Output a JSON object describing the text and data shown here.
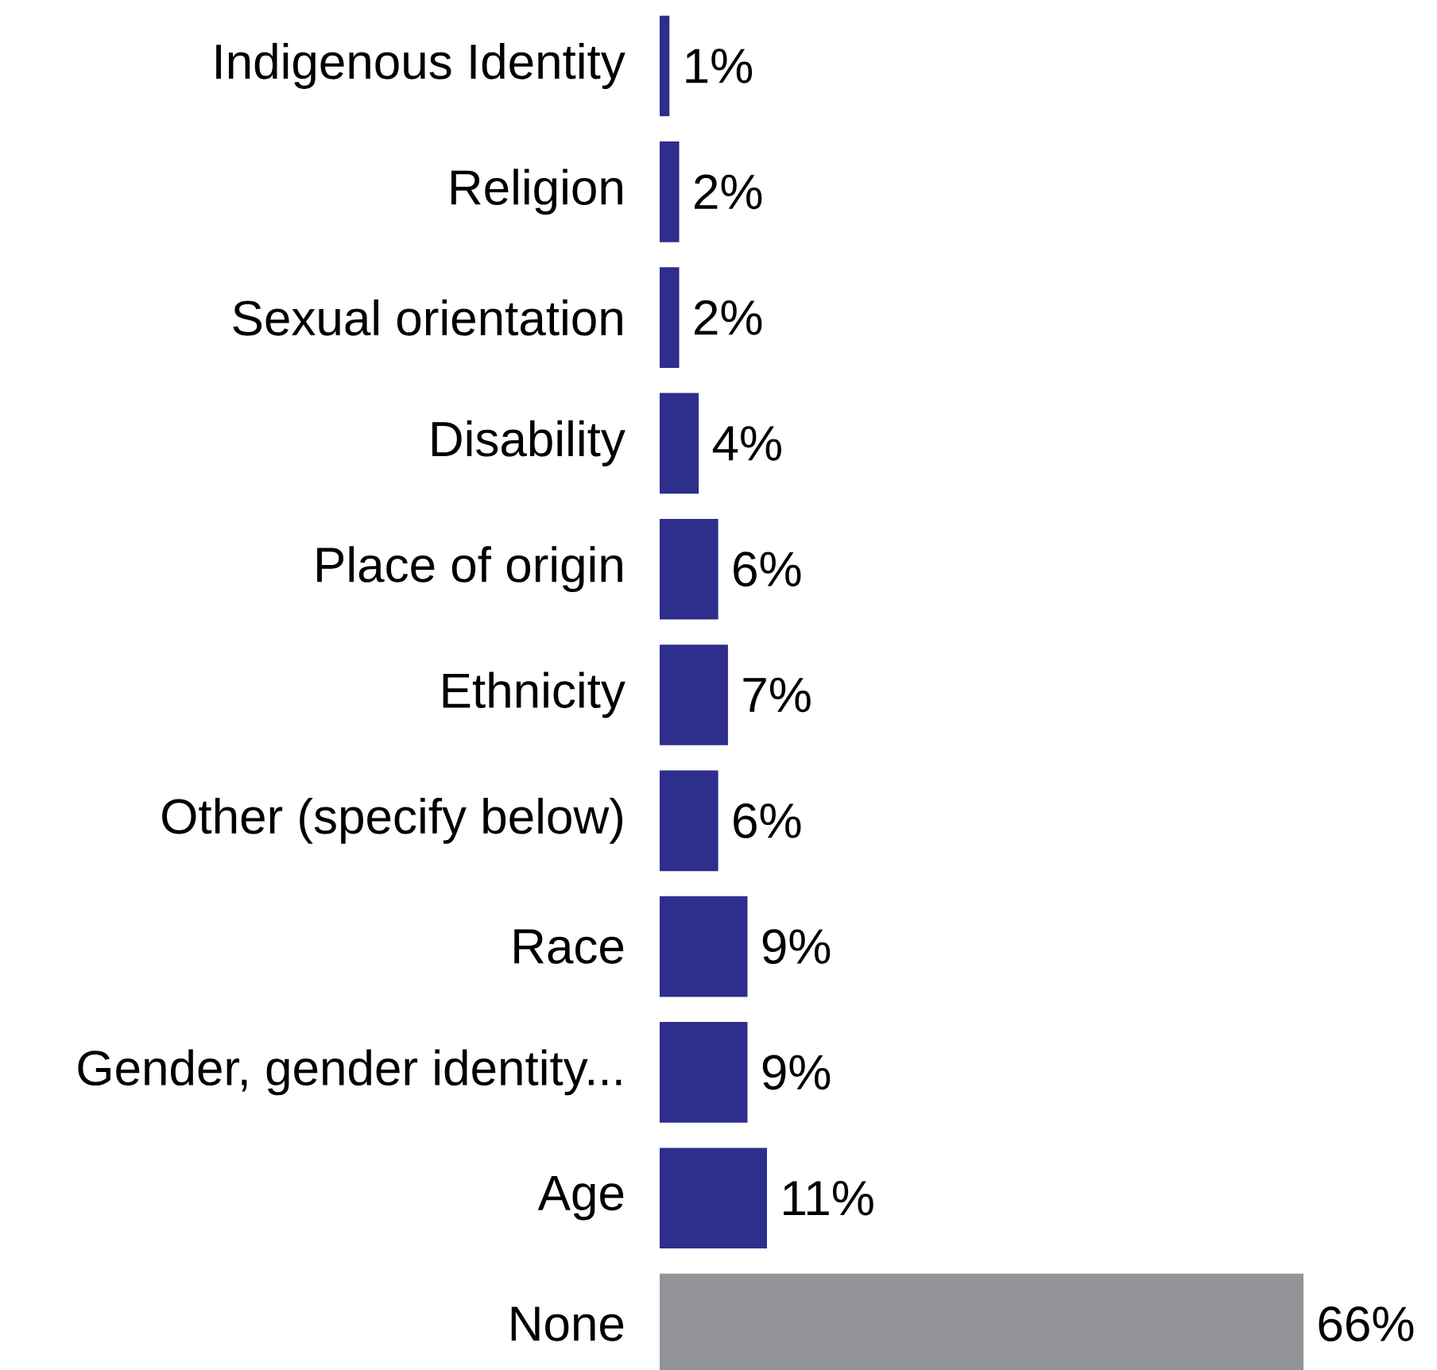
{
  "chart_data": {
    "type": "bar",
    "orientation": "horizontal",
    "categories": [
      "Indigenous Identity",
      "Religion",
      "Sexual orientation",
      "Disability",
      "Place of origin",
      "Ethnicity",
      "Other (specify below)",
      "Race",
      "Gender, gender identity...",
      "Age",
      "None"
    ],
    "values": [
      1,
      2,
      2,
      4,
      6,
      7,
      6,
      9,
      9,
      11,
      66
    ],
    "colors": [
      "#2e2e8c",
      "#2e2e8c",
      "#2e2e8c",
      "#2e2e8c",
      "#2e2e8c",
      "#2e2e8c",
      "#2e2e8c",
      "#2e2e8c",
      "#2e2e8c",
      "#2e2e8c",
      "#929497"
    ],
    "value_labels": [
      "1%",
      "2%",
      "2%",
      "4%",
      "6%",
      "7%",
      "6%",
      "9%",
      "9%",
      "11%",
      "66%"
    ]
  }
}
